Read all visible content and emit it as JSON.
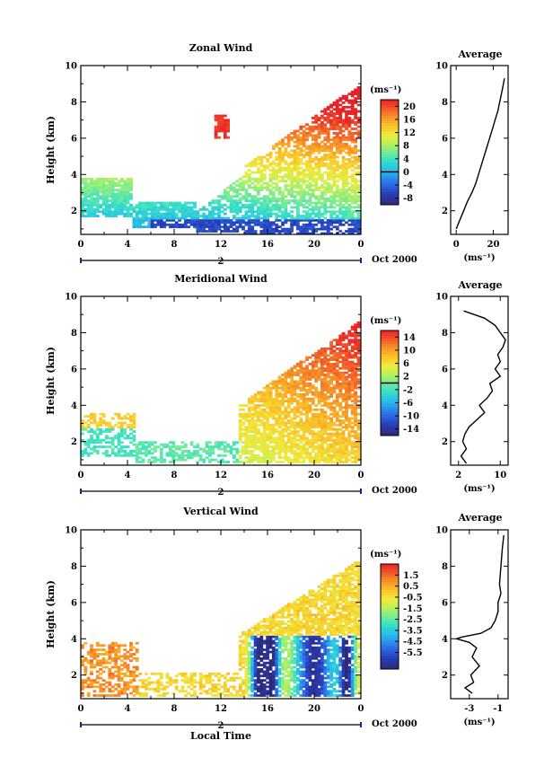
{
  "chart_data": [
    {
      "type": "heatmap",
      "title": "Zonal Wind",
      "ylabel": "Height (km)",
      "xlabel": "",
      "x_ticks": [
        "0",
        "4",
        "8",
        "12",
        "16",
        "20",
        "0"
      ],
      "y_ticks": [
        "2",
        "4",
        "6",
        "8",
        "10"
      ],
      "x_range_hours": [
        0,
        24
      ],
      "ylim": [
        0.7,
        10
      ],
      "date_label": "2",
      "date_suffix": "Oct 2000",
      "colorbar": {
        "unit": "(ms⁻¹)",
        "range": [
          -10,
          22
        ],
        "ticks": [
          "20",
          "16",
          "12",
          "8",
          "4",
          "0",
          "-4",
          "-8"
        ],
        "tick_values": [
          20,
          16,
          12,
          8,
          4,
          0,
          -4,
          -8
        ],
        "zero_line": 0
      },
      "profile": {
        "title": "Average",
        "xlabel": "(ms⁻¹)",
        "x_ticks": [
          "0",
          "20"
        ],
        "x_tick_values": [
          0,
          20
        ],
        "xlim": [
          -3,
          28
        ],
        "y_ticks": [
          "2",
          "4",
          "6",
          "8",
          "10"
        ],
        "height": [
          1.0,
          1.5,
          2.0,
          2.5,
          3.0,
          3.5,
          4.0,
          4.5,
          5.0,
          5.5,
          6.0,
          6.5,
          7.0,
          7.5,
          8.0,
          8.5,
          9.0,
          9.3
        ],
        "values": [
          0,
          2,
          4,
          6,
          8.5,
          10.5,
          12,
          13.5,
          15,
          16.5,
          18,
          19.5,
          21,
          22.5,
          23.5,
          24.5,
          25.5,
          26
        ]
      }
    },
    {
      "type": "heatmap",
      "title": "Meridional Wind",
      "ylabel": "Height (km)",
      "xlabel": "",
      "x_ticks": [
        "0",
        "4",
        "8",
        "12",
        "16",
        "20",
        "0"
      ],
      "y_ticks": [
        "2",
        "4",
        "6",
        "8",
        "10"
      ],
      "x_range_hours": [
        0,
        24
      ],
      "ylim": [
        0.7,
        10
      ],
      "date_label": "2",
      "date_suffix": "Oct 2000",
      "colorbar": {
        "unit": "(ms⁻¹)",
        "range": [
          -16,
          16
        ],
        "ticks": [
          "14",
          "10",
          "6",
          "2",
          "-2",
          "-6",
          "-10",
          "-14"
        ],
        "tick_values": [
          14,
          10,
          6,
          2,
          -2,
          -6,
          -10,
          -14
        ],
        "zero_line": 0
      },
      "profile": {
        "title": "Average",
        "xlabel": "(ms⁻¹)",
        "x_ticks": [
          "2",
          "10"
        ],
        "x_tick_values": [
          2,
          10
        ],
        "xlim": [
          0.5,
          11.5
        ],
        "y_ticks": [
          "2",
          "4",
          "6",
          "8",
          "10"
        ],
        "height": [
          0.8,
          1.2,
          1.6,
          2.0,
          2.4,
          2.8,
          3.2,
          3.6,
          4.0,
          4.4,
          4.8,
          5.2,
          5.6,
          6.0,
          6.4,
          6.8,
          7.2,
          7.6,
          8.0,
          8.4,
          8.8,
          9.2
        ],
        "values": [
          3.5,
          2.5,
          3.5,
          2.8,
          3.2,
          4,
          5.5,
          7,
          6,
          7.5,
          8.5,
          8,
          10,
          9,
          10,
          9.5,
          10.5,
          11,
          10,
          9,
          7,
          3
        ]
      }
    },
    {
      "type": "heatmap",
      "title": "Vertical Wind",
      "ylabel": "Height (km)",
      "xlabel": "Local Time",
      "x_ticks": [
        "0",
        "4",
        "8",
        "12",
        "16",
        "20",
        "0"
      ],
      "y_ticks": [
        "2",
        "4",
        "6",
        "8",
        "10"
      ],
      "x_range_hours": [
        0,
        24
      ],
      "ylim": [
        0.7,
        10
      ],
      "date_label": "2",
      "date_suffix": "Oct 2000",
      "colorbar": {
        "unit": "(ms⁻¹)",
        "range": [
          -7,
          2.5
        ],
        "ticks": [
          "1.5",
          "0.5",
          "-0.5",
          "-1.5",
          "-2.5",
          "-3.5",
          "-4.5",
          "-5.5"
        ],
        "tick_values": [
          1.5,
          0.5,
          -0.5,
          -1.5,
          -2.5,
          -3.5,
          -4.5,
          -5.5
        ],
        "zero_line": null
      },
      "profile": {
        "title": "Average",
        "xlabel": "(ms⁻¹)",
        "x_ticks": [
          "-3",
          "-1"
        ],
        "x_tick_values": [
          -3,
          -1
        ],
        "xlim": [
          -4.3,
          -0.3
        ],
        "y_ticks": [
          "2",
          "4",
          "6",
          "8",
          "10"
        ],
        "height": [
          1.0,
          1.3,
          1.6,
          2.0,
          2.5,
          3.0,
          3.5,
          3.8,
          4.0,
          4.1,
          4.3,
          4.6,
          5.0,
          5.5,
          6.0,
          6.5,
          7.0,
          8.0,
          9.0,
          9.7
        ],
        "values": [
          -2.8,
          -3.3,
          -2.7,
          -2.9,
          -2.3,
          -2.8,
          -2.5,
          -3.0,
          -3.9,
          -3.5,
          -2.2,
          -1.5,
          -1.2,
          -1.0,
          -1.0,
          -0.8,
          -0.9,
          -0.8,
          -0.7,
          -0.6
        ]
      }
    }
  ]
}
